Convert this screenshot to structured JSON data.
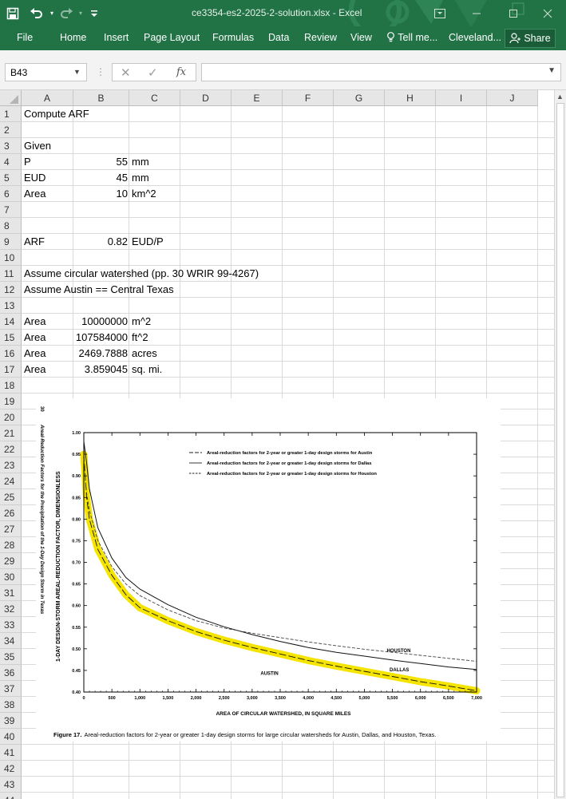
{
  "titlebar": {
    "title": "ce3354-es2-2025-2-solution.xlsx - Excel",
    "qat_icons": [
      "save-icon",
      "undo-icon",
      "redo-icon",
      "customize-qat-icon"
    ]
  },
  "ribbon": {
    "tabs": [
      "File",
      "Home",
      "Insert",
      "Page Layout",
      "Formulas",
      "Data",
      "Review",
      "View"
    ],
    "tell_me": "Tell me...",
    "account": "Cleveland...",
    "share": "Share"
  },
  "formula_bar": {
    "name_box": "B43",
    "formula": "",
    "fx_label": "fx"
  },
  "grid": {
    "columns": [
      "A",
      "B",
      "C",
      "D",
      "E",
      "F",
      "G",
      "H",
      "I",
      "J"
    ],
    "rows": [
      "1",
      "2",
      "3",
      "4",
      "5",
      "6",
      "7",
      "8",
      "9",
      "10",
      "11",
      "12",
      "13",
      "14",
      "15",
      "16",
      "17",
      "18",
      "19",
      "20",
      "21",
      "22",
      "23",
      "24",
      "25",
      "26",
      "27",
      "28",
      "29",
      "30",
      "31",
      "32",
      "33",
      "34",
      "35",
      "36",
      "37",
      "38",
      "39",
      "40",
      "41",
      "42",
      "43",
      "44"
    ],
    "cells": {
      "a1": "Compute ARF",
      "a3": "Given",
      "a4": "P",
      "b4": "55",
      "c4": "mm",
      "a5": "EUD",
      "b5": "45",
      "c5": "mm",
      "a6": "Area",
      "b6": "10",
      "c6": "km^2",
      "a9": "ARF",
      "b9": "0.82",
      "c9": "EUD/P",
      "a11": "Assume circular watershed (pp. 30 WRIR 99-4267)",
      "a12": "Assume Austin == Central Texas",
      "a14": "Area",
      "b14": "10000000",
      "c14": "m^2",
      "a15": "Area",
      "b15": "107584000",
      "c15": "ft^2",
      "a16": "Area",
      "b16": "2469.7888",
      "c16": "acres",
      "a17": "Area",
      "b17": "3.859045",
      "c17": "sq. mi."
    }
  },
  "figure": {
    "page_number": "30",
    "side_title": "Areal-Reduction Factors for the Precipitation of the 1-Day Design Storm in Texas",
    "caption_label": "Figure 17.",
    "caption": "Areal-reduction factors for 2-year or greater 1-day design storms for large circular watersheds for Austin, Dallas, and Houston, Texas.",
    "chart_data": {
      "type": "line",
      "xlabel": "AREA OF CIRCULAR WATERSHED, IN SQUARE MILES",
      "ylabel": "1-DAY DESIGN-STORM AREAL-REDUCTION FACTOR, DIMENSIONLESS",
      "xlim": [
        0,
        7000
      ],
      "ylim": [
        0.4,
        1.0
      ],
      "x_ticks": [
        "0",
        "500",
        "1,000",
        "1,500",
        "2,000",
        "2,500",
        "3,000",
        "3,500",
        "4,000",
        "4,500",
        "5,000",
        "5,500",
        "6,000",
        "6,500",
        "7,000"
      ],
      "y_ticks": [
        "0.40",
        "0.45",
        "0.50",
        "0.55",
        "0.60",
        "0.65",
        "0.70",
        "0.75",
        "0.80",
        "0.85",
        "0.90",
        "0.95",
        "1.00"
      ],
      "legend": [
        {
          "label": "Areal-reduction factors for 2-year or greater 1-day design storms for Austin",
          "style": "long-dash"
        },
        {
          "label": "Areal-reduction factors for 2-year or greater 1-day design storms for Dallas",
          "style": "solid"
        },
        {
          "label": "Areal-reduction factors for 2-year or greater 1-day design storms for Houston",
          "style": "short-dash"
        }
      ],
      "highlight_color": "#f5e400",
      "series": [
        {
          "name": "AUSTIN",
          "style": "long-dash",
          "x": [
            0,
            50,
            100,
            250,
            500,
            750,
            1000,
            1500,
            2000,
            2500,
            3000,
            3500,
            4000,
            4500,
            5000,
            5500,
            6000,
            6500,
            7000
          ],
          "y": [
            0.95,
            0.85,
            0.8,
            0.73,
            0.67,
            0.625,
            0.595,
            0.565,
            0.54,
            0.52,
            0.503,
            0.488,
            0.473,
            0.46,
            0.448,
            0.436,
            0.424,
            0.414,
            0.403
          ]
        },
        {
          "name": "DALLAS",
          "style": "solid",
          "x": [
            0,
            50,
            100,
            250,
            500,
            750,
            1000,
            1500,
            2000,
            2500,
            3000,
            3500,
            4000,
            4500,
            5000,
            5500,
            6000,
            6500,
            7000
          ],
          "y": [
            0.98,
            0.93,
            0.87,
            0.78,
            0.71,
            0.665,
            0.638,
            0.602,
            0.573,
            0.551,
            0.533,
            0.517,
            0.503,
            0.492,
            0.483,
            0.474,
            0.466,
            0.458,
            0.452
          ]
        },
        {
          "name": "HOUSTON",
          "style": "short-dash",
          "x": [
            0,
            50,
            100,
            250,
            500,
            750,
            1000,
            1500,
            2000,
            2500,
            3000,
            3500,
            4000,
            4500,
            5000,
            5500,
            6000,
            6500,
            7000
          ],
          "y": [
            0.94,
            0.86,
            0.82,
            0.75,
            0.69,
            0.65,
            0.623,
            0.59,
            0.565,
            0.548,
            0.536,
            0.526,
            0.516,
            0.507,
            0.499,
            0.492,
            0.485,
            0.478,
            0.471
          ]
        }
      ],
      "labels": [
        {
          "text": "HOUSTON",
          "x": 5400,
          "y": 0.492
        },
        {
          "text": "DALLAS",
          "x": 5450,
          "y": 0.448
        },
        {
          "text": "AUSTIN",
          "x": 3150,
          "y": 0.44
        }
      ]
    }
  }
}
